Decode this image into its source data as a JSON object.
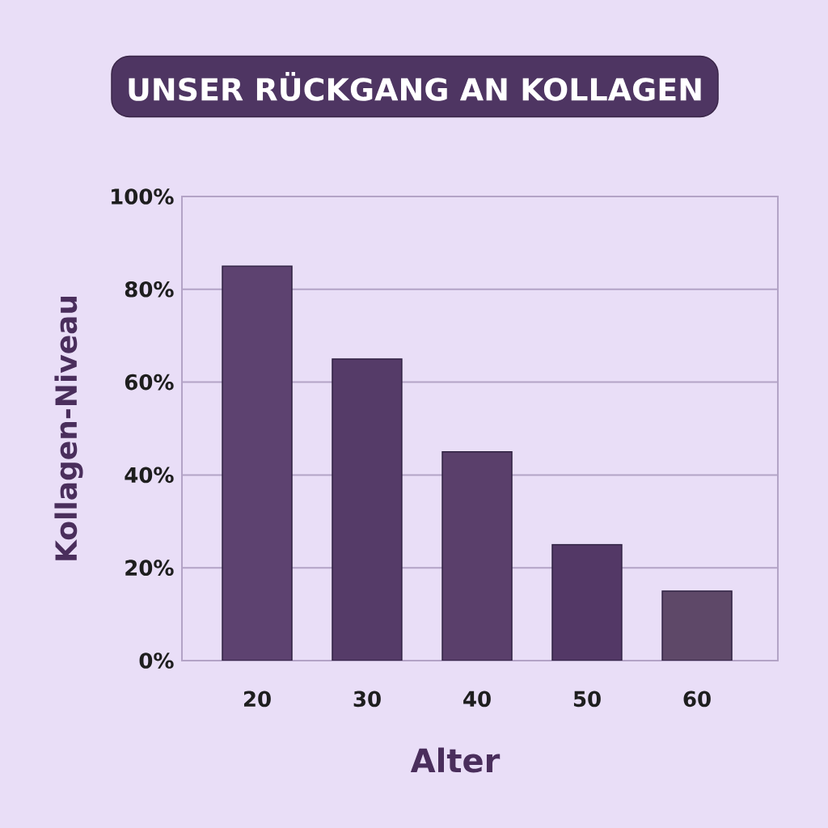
{
  "chart_data": {
    "type": "bar",
    "title": "UNSER RÜCKGANG AN KOLLAGEN",
    "xlabel": "Alter",
    "ylabel": "Kollagen-Niveau",
    "categories": [
      "20",
      "30",
      "40",
      "50",
      "60"
    ],
    "values": [
      85,
      65,
      45,
      25,
      15
    ],
    "colors": [
      "#5d4270",
      "#553b68",
      "#5a3f6b",
      "#533866",
      "#5e4868"
    ],
    "ylim": [
      0,
      100
    ],
    "yticks": [
      {
        "value": 0,
        "label": "0%"
      },
      {
        "value": 20,
        "label": "20%"
      },
      {
        "value": 40,
        "label": "40%"
      },
      {
        "value": 60,
        "label": "60%"
      },
      {
        "value": 80,
        "label": "80%"
      },
      {
        "value": 100,
        "label": "100%"
      }
    ],
    "grid": "y"
  }
}
